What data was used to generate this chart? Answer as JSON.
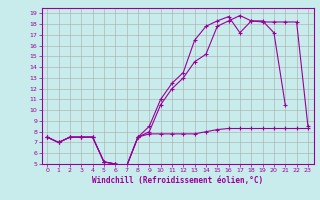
{
  "xlabel": "Windchill (Refroidissement éolien,°C)",
  "bg_color": "#c8ecec",
  "line_color": "#990099",
  "grid_color": "#aaaaaa",
  "xlim": [
    -0.5,
    23.5
  ],
  "ylim": [
    5,
    19.5
  ],
  "xticks": [
    0,
    1,
    2,
    3,
    4,
    5,
    6,
    7,
    8,
    9,
    10,
    11,
    12,
    13,
    14,
    15,
    16,
    17,
    18,
    19,
    20,
    21,
    22,
    23
  ],
  "yticks": [
    5,
    6,
    7,
    8,
    9,
    10,
    11,
    12,
    13,
    14,
    15,
    16,
    17,
    18,
    19
  ],
  "series": [
    {
      "x": [
        0,
        1,
        2,
        3,
        4,
        5,
        6,
        7,
        8,
        9,
        10,
        11,
        12,
        13,
        14,
        15,
        16,
        17,
        18,
        19,
        20,
        21
      ],
      "y": [
        7.5,
        7.0,
        7.5,
        7.5,
        7.5,
        5.2,
        5.0,
        4.8,
        7.5,
        8.5,
        11.0,
        12.5,
        13.5,
        16.5,
        17.8,
        18.3,
        18.7,
        17.2,
        18.3,
        18.3,
        17.2,
        10.5
      ]
    },
    {
      "x": [
        0,
        1,
        2,
        3,
        4,
        5,
        6,
        7,
        8,
        9,
        10,
        11,
        12,
        13,
        14,
        15,
        16,
        17,
        18,
        19,
        20,
        21,
        22,
        23
      ],
      "y": [
        7.5,
        7.0,
        7.5,
        7.5,
        7.5,
        5.2,
        5.0,
        4.8,
        7.5,
        8.0,
        10.5,
        12.0,
        13.0,
        14.5,
        15.2,
        17.8,
        18.3,
        18.8,
        18.3,
        18.2,
        18.2,
        18.2,
        18.2,
        8.5
      ]
    },
    {
      "x": [
        0,
        1,
        2,
        3,
        4,
        5,
        6,
        7,
        8,
        9,
        10,
        11,
        12,
        13,
        14,
        15,
        16,
        17,
        18,
        19,
        20,
        21,
        22,
        23
      ],
      "y": [
        7.5,
        7.0,
        7.5,
        7.5,
        7.5,
        5.2,
        5.0,
        4.8,
        7.5,
        7.8,
        7.8,
        7.8,
        7.8,
        7.8,
        8.0,
        8.2,
        8.3,
        8.3,
        8.3,
        8.3,
        8.3,
        8.3,
        8.3,
        8.3
      ]
    }
  ]
}
